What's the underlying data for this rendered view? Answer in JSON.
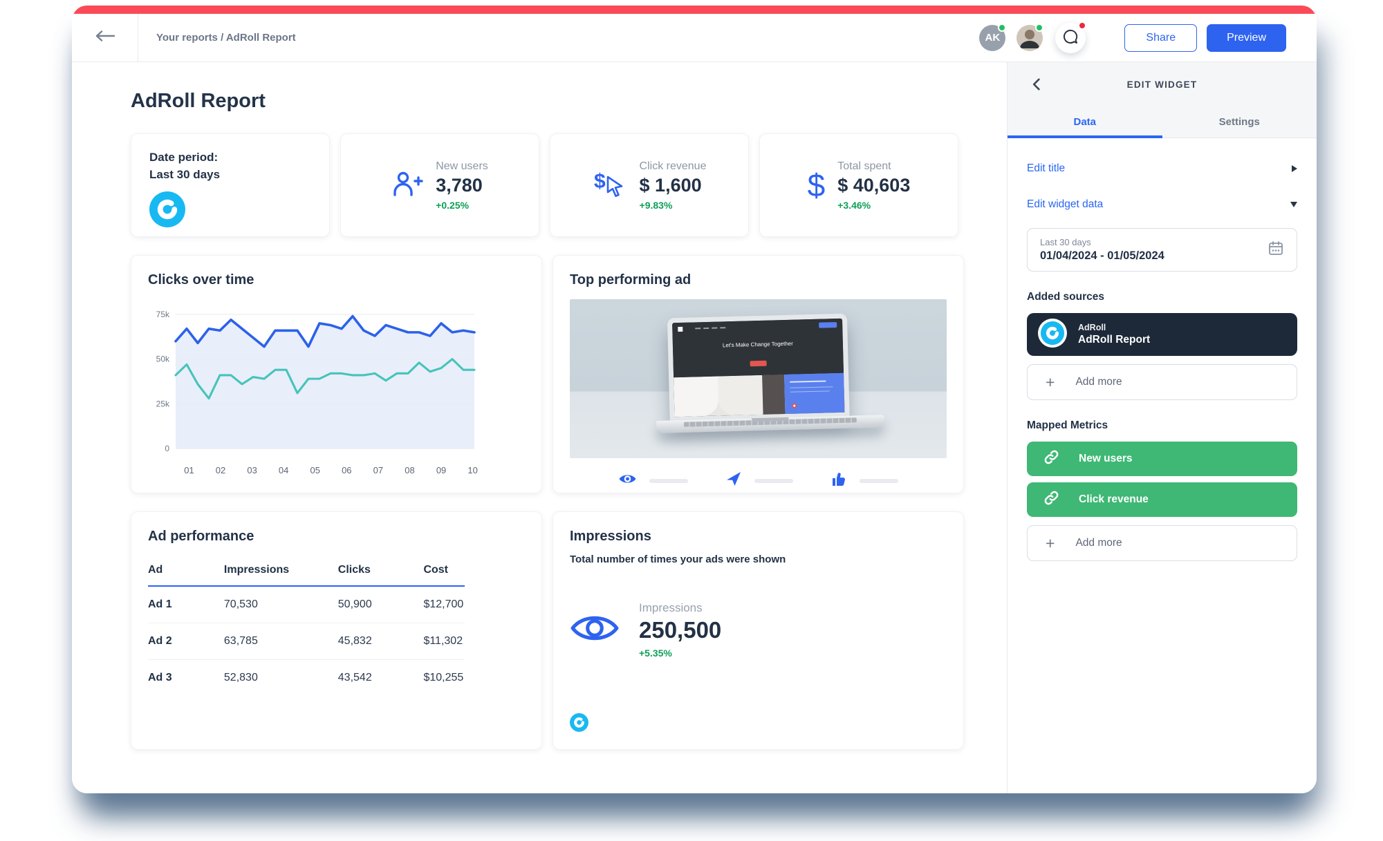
{
  "topbar": {
    "breadcrumb": "Your reports / AdRoll Report",
    "avatar_initials": "AK",
    "share_label": "Share",
    "preview_label": "Preview"
  },
  "page": {
    "title": "AdRoll Report"
  },
  "kpi": {
    "date_period": {
      "line1": "Date period:",
      "line2": "Last 30 days"
    },
    "new_users": {
      "label": "New users",
      "value": "3,780",
      "delta": "+0.25%"
    },
    "click_revenue": {
      "label": "Click revenue",
      "value": "$ 1,600",
      "delta": "+9.83%"
    },
    "total_spent": {
      "label": "Total spent",
      "value": "$ 40,603",
      "delta": "+3.46%"
    }
  },
  "chart_data": {
    "type": "line",
    "title": "Clicks over time",
    "x_labels": [
      "01",
      "02",
      "03",
      "04",
      "05",
      "06",
      "07",
      "08",
      "09",
      "10"
    ],
    "ylim_k": [
      0,
      75
    ],
    "y_ticks_k": [
      {
        "value": 0,
        "label": "0"
      },
      {
        "value": 25,
        "label": "25k"
      },
      {
        "value": 50,
        "label": "50k"
      },
      {
        "value": 75,
        "label": "75k"
      }
    ],
    "grid": true,
    "legend": "none",
    "series": [
      {
        "name": "clicks-total",
        "color": "#2b62e9",
        "fill": "#e9eefb",
        "values_k": [
          60,
          67,
          59,
          67,
          66,
          72,
          67,
          62,
          57,
          66,
          66,
          66,
          57,
          70,
          69,
          67,
          74,
          66,
          63,
          69,
          67,
          65,
          65,
          63,
          70,
          65,
          66,
          65
        ]
      },
      {
        "name": "clicks-unique",
        "color": "#45c4b9",
        "values_k": [
          41,
          47,
          36,
          28,
          41,
          41,
          36,
          40,
          39,
          44,
          44,
          31,
          39,
          39,
          42,
          42,
          41,
          41,
          42,
          38,
          42,
          42,
          48,
          43,
          45,
          50,
          44,
          44
        ]
      }
    ]
  },
  "top_ad": {
    "title": "Top performing ad",
    "headline": "Let's Make Change Together"
  },
  "ad_table": {
    "title": "Ad performance",
    "headers": [
      "Ad",
      "Impressions",
      "Clicks",
      "Cost"
    ],
    "rows": [
      [
        "Ad 1",
        "70,530",
        "50,900",
        "$12,700"
      ],
      [
        "Ad 2",
        "63,785",
        "45,832",
        "$11,302"
      ],
      [
        "Ad 3",
        "52,830",
        "43,542",
        "$10,255"
      ]
    ]
  },
  "impressions": {
    "title": "Impressions",
    "subtitle": "Total number of times your ads were shown",
    "label": "Impressions",
    "value": "250,500",
    "delta": "+5.35%"
  },
  "sidebar": {
    "header": "EDIT WIDGET",
    "tabs": [
      {
        "label": "Data",
        "active": true
      },
      {
        "label": "Settings",
        "active": false
      }
    ],
    "edit_title_label": "Edit title",
    "edit_widget_data_label": "Edit widget data",
    "date_range": {
      "preset": "Last 30 days",
      "range": "01/04/2024 - 01/05/2024"
    },
    "added_sources_label": "Added sources",
    "source": {
      "platform": "AdRoll",
      "name": "AdRoll Report"
    },
    "add_more_label": "Add more",
    "mapped_metrics_label": "Mapped Metrics",
    "metrics": [
      "New users",
      "Click revenue"
    ]
  },
  "colors": {
    "accent_blue": "#2e63f0",
    "accent_red": "#fb4a57",
    "positive_green": "#0d9f56",
    "metric_pill_green": "#3eb874",
    "source_pill_navy": "#1d2938",
    "adroll_cyan": "#18b9f2",
    "chart_blue": "#2b62e9",
    "chart_teal": "#45c4b9",
    "shadow_slate": "#5b7593"
  }
}
